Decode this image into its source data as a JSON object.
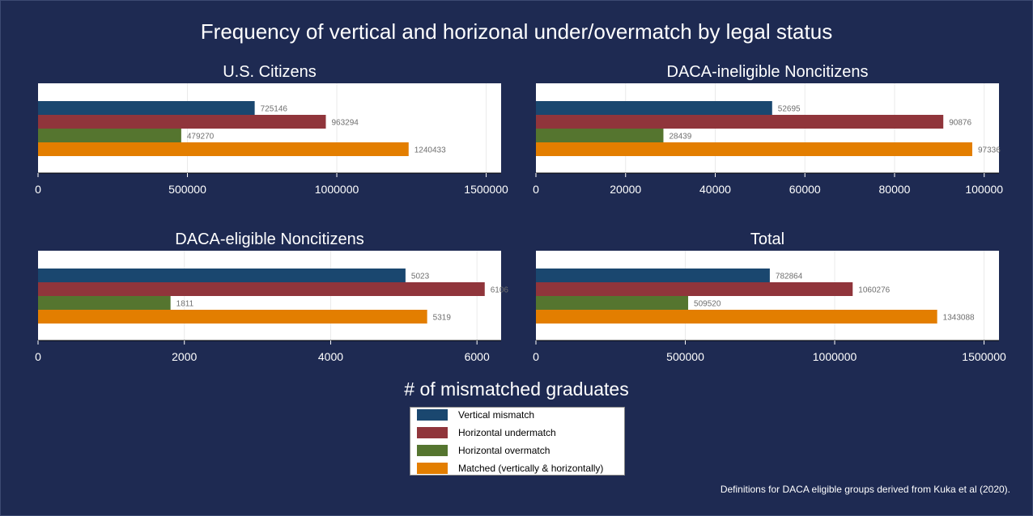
{
  "title": "Frequency of vertical and horizonal under/overmatch by legal status",
  "xaxis_title": "# of mismatched graduates",
  "note": "Definitions for DACA eligible groups derived from Kuka et al (2020).",
  "colors": {
    "background": "#1e2a52",
    "plot_background": "#ffffff"
  },
  "legend": [
    {
      "label": "Vertical mismatch",
      "color": "#1a476f"
    },
    {
      "label": "Horizontal undermatch",
      "color": "#90353b"
    },
    {
      "label": "Horizontal overmatch",
      "color": "#55752f"
    },
    {
      "label": "Matched (vertically & horizontally)",
      "color": "#e37e00"
    }
  ],
  "chart_data": [
    {
      "type": "bar",
      "orientation": "horizontal",
      "title": "U.S. Citizens",
      "categories": [
        "Vertical mismatch",
        "Horizontal undermatch",
        "Horizontal overmatch",
        "Matched (vertically & horizontally)"
      ],
      "values": [
        725146,
        963294,
        479270,
        1240433
      ],
      "value_labels": [
        "725146",
        "963294",
        "479270",
        "1240433"
      ],
      "xlim": [
        0,
        1550000
      ],
      "ticks": [
        0,
        500000,
        1000000,
        1500000
      ],
      "tick_labels": [
        "0",
        "500000",
        "1000000",
        "1500000"
      ],
      "grid": true
    },
    {
      "type": "bar",
      "orientation": "horizontal",
      "title": "DACA-ineligible Noncitizens",
      "categories": [
        "Vertical mismatch",
        "Horizontal undermatch",
        "Horizontal overmatch",
        "Matched (vertically & horizontally)"
      ],
      "values": [
        52695,
        90876,
        28439,
        97336
      ],
      "value_labels": [
        "52695",
        "90876",
        "28439",
        "97336"
      ],
      "xlim": [
        0,
        103300
      ],
      "ticks": [
        0,
        20000,
        40000,
        60000,
        80000,
        100000
      ],
      "tick_labels": [
        "0",
        "20000",
        "40000",
        "60000",
        "80000",
        "100000"
      ],
      "grid": true
    },
    {
      "type": "bar",
      "orientation": "horizontal",
      "title": "DACA-eligible Noncitizens",
      "categories": [
        "Vertical mismatch",
        "Horizontal undermatch",
        "Horizontal overmatch",
        "Matched (vertically & horizontally)"
      ],
      "values": [
        5023,
        6106,
        1811,
        5319
      ],
      "value_labels": [
        "5023",
        "6106",
        "1811",
        "5319"
      ],
      "xlim": [
        0,
        6330
      ],
      "ticks": [
        0,
        2000,
        4000,
        6000
      ],
      "tick_labels": [
        "0",
        "2000",
        "4000",
        "6000"
      ],
      "grid": true
    },
    {
      "type": "bar",
      "orientation": "horizontal",
      "title": "Total",
      "categories": [
        "Vertical mismatch",
        "Horizontal undermatch",
        "Horizontal overmatch",
        "Matched (vertically & horizontally)"
      ],
      "values": [
        782864,
        1060276,
        509520,
        1343088
      ],
      "value_labels": [
        "782864",
        "1060276",
        "509520",
        "1343088"
      ],
      "xlim": [
        0,
        1550000
      ],
      "ticks": [
        0,
        500000,
        1000000,
        1500000
      ],
      "tick_labels": [
        "0",
        "500000",
        "1000000",
        "1500000"
      ],
      "grid": true
    }
  ]
}
